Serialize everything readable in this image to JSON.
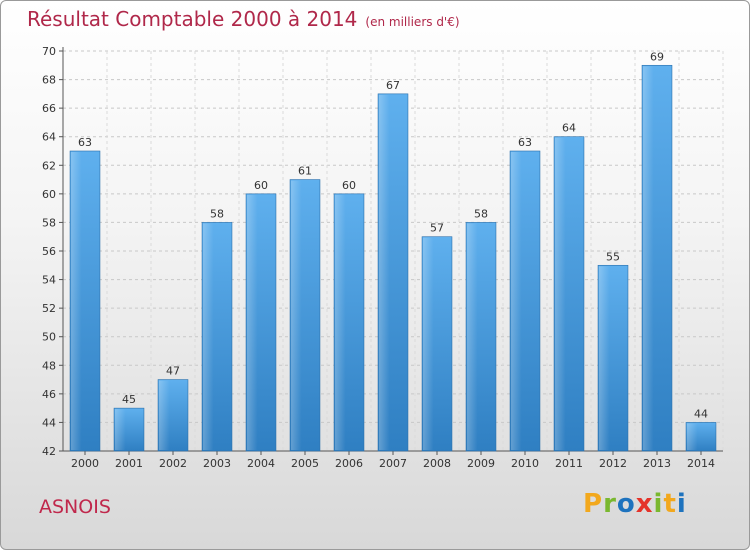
{
  "header": {
    "title": "Résultat Comptable 2000 à 2014",
    "unit": "(en milliers d'€)"
  },
  "commune": "ASNOIS",
  "logo": {
    "letters": [
      "P",
      "r",
      "o",
      "x",
      "i",
      "t",
      "i"
    ],
    "colors": [
      "#f2a81d",
      "#7ab82f",
      "#1e73be",
      "#e5332a",
      "#7ab82f",
      "#f2a81d",
      "#1e73be"
    ]
  },
  "chart_data": {
    "type": "bar",
    "title": "Résultat Comptable 2000 à 2014",
    "ylabel": "(en milliers d'€)",
    "xlabel": "",
    "categories": [
      "2000",
      "2001",
      "2002",
      "2003",
      "2004",
      "2005",
      "2006",
      "2007",
      "2008",
      "2009",
      "2010",
      "2011",
      "2012",
      "2013",
      "2014"
    ],
    "values": [
      63,
      45,
      47,
      58,
      60,
      61,
      60,
      67,
      57,
      58,
      63,
      64,
      55,
      69,
      44
    ],
    "ylim": [
      42,
      70
    ],
    "yticks": [
      42,
      44,
      46,
      48,
      50,
      52,
      54,
      56,
      58,
      60,
      62,
      64,
      66,
      68,
      70
    ],
    "grid": true,
    "bar_color": "#4a9fe0"
  }
}
